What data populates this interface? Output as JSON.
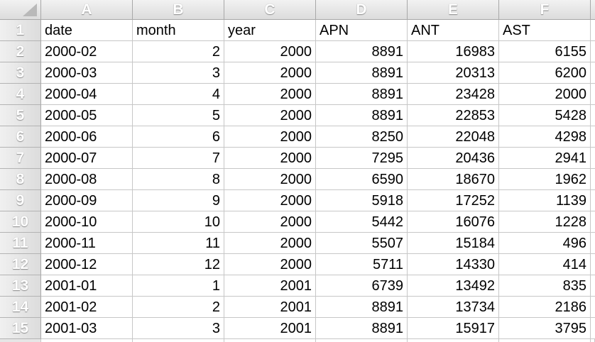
{
  "sheet": {
    "column_letters": [
      "A",
      "B",
      "C",
      "D",
      "E",
      "F"
    ],
    "row_numbers": [
      "1",
      "2",
      "3",
      "4",
      "5",
      "6",
      "7",
      "8",
      "9",
      "10",
      "11",
      "12",
      "13",
      "14",
      "15"
    ],
    "rows": [
      [
        "date",
        "month",
        "year",
        "APN",
        "ANT",
        "AST"
      ],
      [
        "2000-02",
        "2",
        "2000",
        "8891",
        "16983",
        "6155"
      ],
      [
        "2000-03",
        "3",
        "2000",
        "8891",
        "20313",
        "6200"
      ],
      [
        "2000-04",
        "4",
        "2000",
        "8891",
        "23428",
        "2000"
      ],
      [
        "2000-05",
        "5",
        "2000",
        "8891",
        "22853",
        "5428"
      ],
      [
        "2000-06",
        "6",
        "2000",
        "8250",
        "22048",
        "4298"
      ],
      [
        "2000-07",
        "7",
        "2000",
        "7295",
        "20436",
        "2941"
      ],
      [
        "2000-08",
        "8",
        "2000",
        "6590",
        "18670",
        "1962"
      ],
      [
        "2000-09",
        "9",
        "2000",
        "5918",
        "17252",
        "1139"
      ],
      [
        "2000-10",
        "10",
        "2000",
        "5442",
        "16076",
        "1228"
      ],
      [
        "2000-11",
        "11",
        "2000",
        "5507",
        "15184",
        "496"
      ],
      [
        "2000-12",
        "12",
        "2000",
        "5711",
        "14330",
        "414"
      ],
      [
        "2001-01",
        "1",
        "2001",
        "6739",
        "13492",
        "835"
      ],
      [
        "2001-02",
        "2",
        "2001",
        "8891",
        "13734",
        "2186"
      ],
      [
        "2001-03",
        "3",
        "2001",
        "8891",
        "15917",
        "3795"
      ]
    ]
  }
}
